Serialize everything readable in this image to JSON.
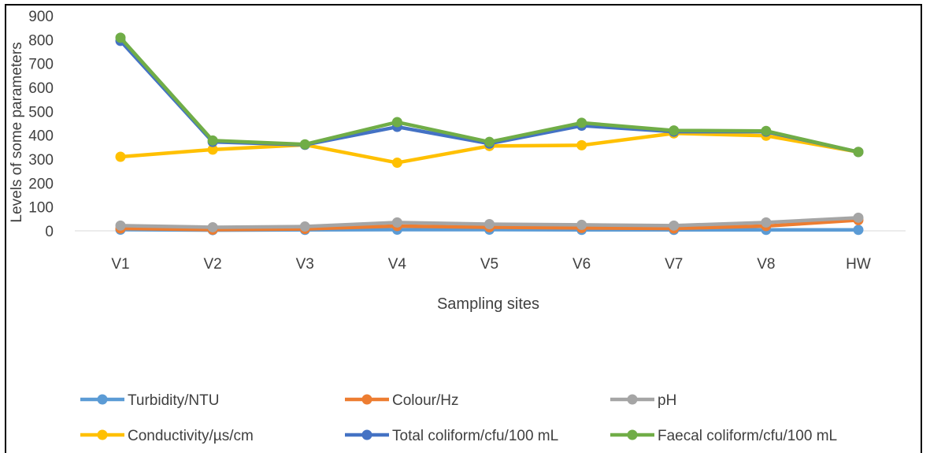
{
  "chart_data": {
    "type": "line",
    "title": "",
    "xlabel": "Sampling sites",
    "ylabel": "Levels of some parameters",
    "categories": [
      "V1",
      "V2",
      "V3",
      "V4",
      "V5",
      "V6",
      "V7",
      "V8",
      "HW"
    ],
    "yticks": [
      "0",
      "100",
      "200",
      "300",
      "400",
      "500",
      "600",
      "700",
      "800",
      "900"
    ],
    "ylim": [
      0,
      900
    ],
    "grid": false,
    "legend_position": "bottom",
    "series": [
      {
        "name": "Turbidity/NTU",
        "color": "#5b9bd5",
        "values": [
          5,
          3,
          4,
          5,
          5,
          4,
          4,
          4,
          4
        ]
      },
      {
        "name": "Colour/Hz",
        "color": "#ed7d31",
        "values": [
          10,
          5,
          8,
          20,
          15,
          12,
          10,
          20,
          45
        ]
      },
      {
        "name": "pH",
        "color": "#a5a5a5",
        "values": [
          22,
          15,
          18,
          35,
          28,
          25,
          22,
          35,
          55
        ]
      },
      {
        "name": "Conductivity/µs/cm",
        "color": "#ffc000",
        "values": [
          310,
          340,
          360,
          285,
          355,
          358,
          408,
          398,
          330
        ]
      },
      {
        "name": "Total coliform/cfu/100 mL",
        "color": "#4472c4",
        "values": [
          795,
          372,
          360,
          435,
          365,
          440,
          415,
          415,
          330
        ]
      },
      {
        "name": "Faecal coliform/cfu/100 mL",
        "color": "#70ad47",
        "values": [
          808,
          378,
          362,
          455,
          372,
          452,
          420,
          418,
          330
        ]
      }
    ]
  }
}
